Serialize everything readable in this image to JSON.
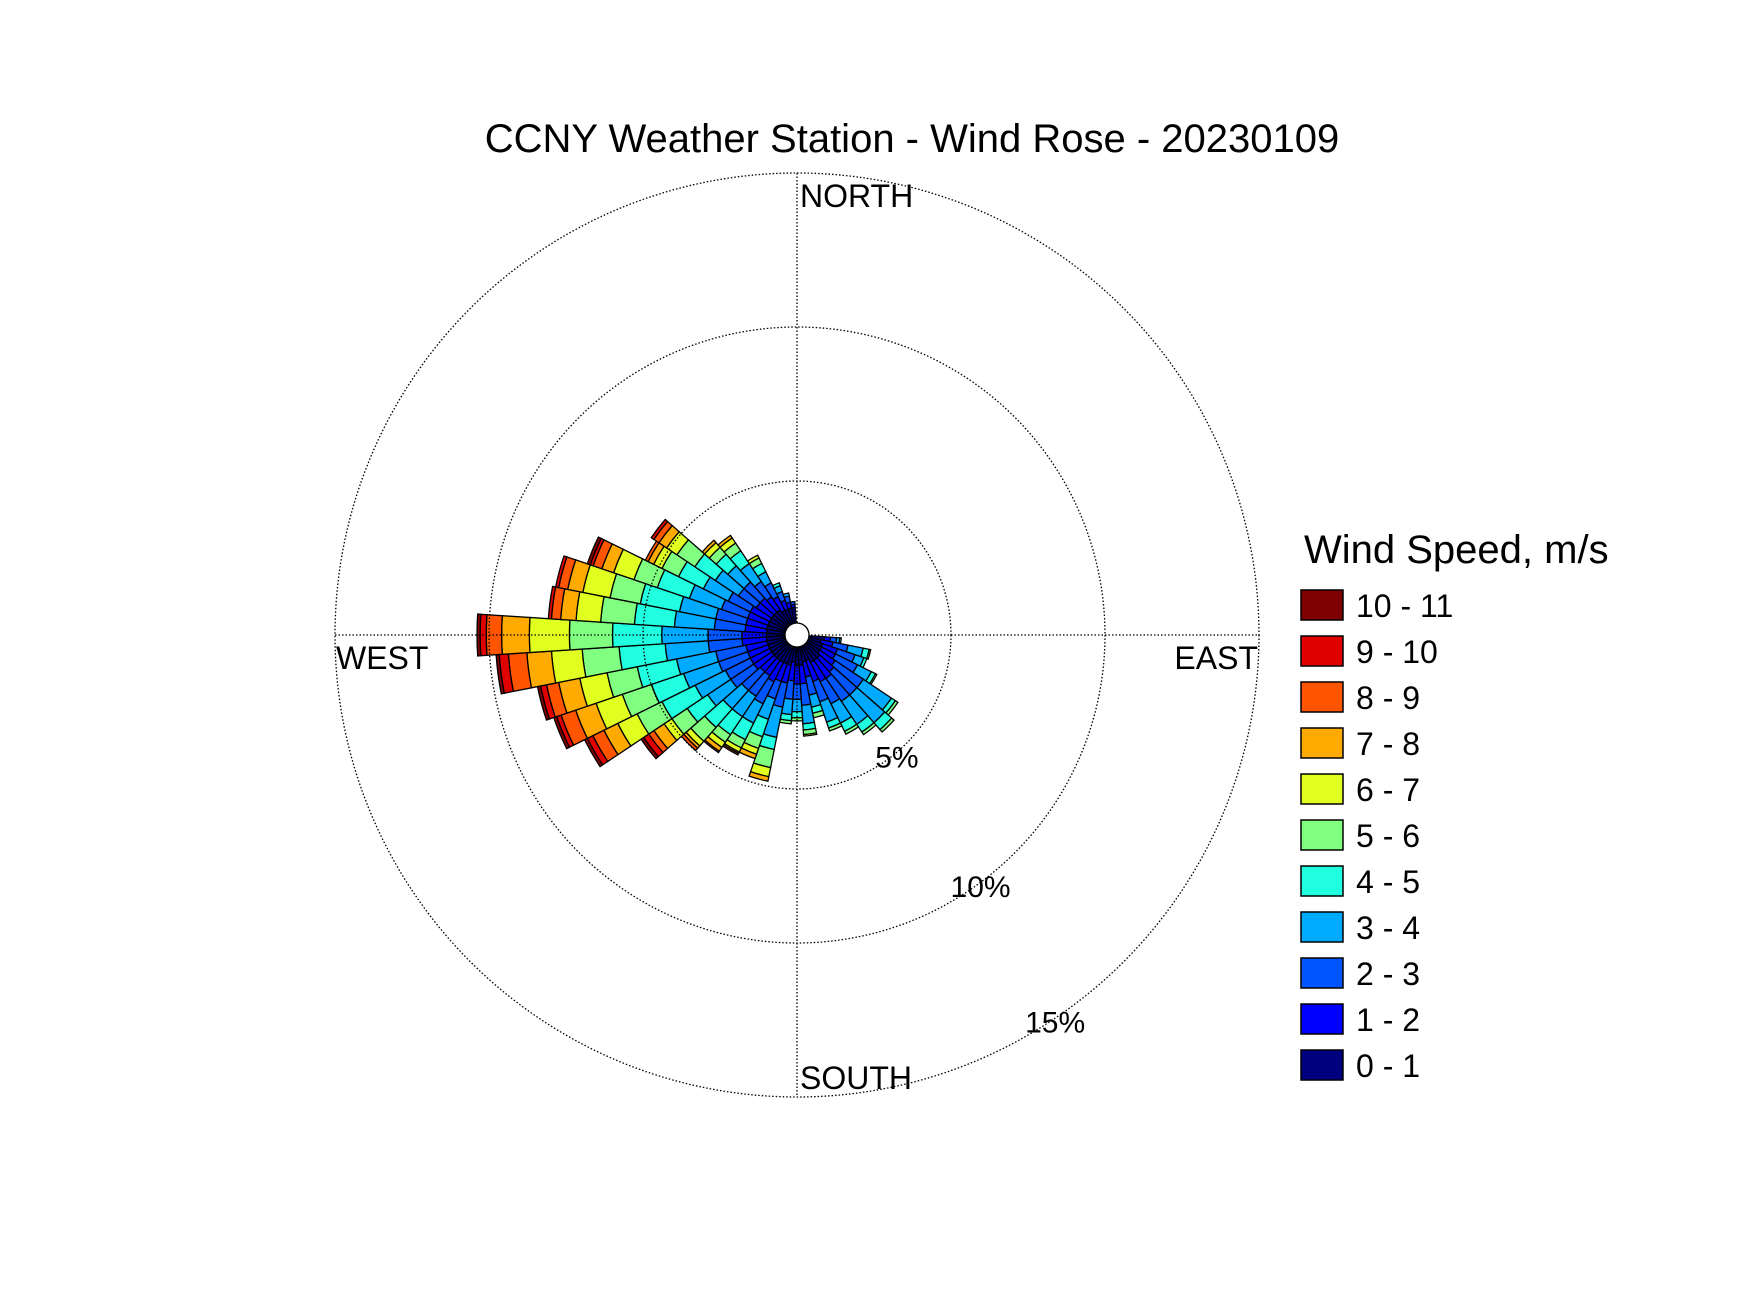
{
  "chart_data": {
    "type": "wind-rose",
    "title": "CCNY Weather Station - Wind Rose - 20230109",
    "cardinals": {
      "north": "NORTH",
      "south": "SOUTH",
      "east": "EAST",
      "west": "WEST"
    },
    "rings": [
      {
        "value": 5,
        "label": "5%"
      },
      {
        "value": 10,
        "label": "10%"
      },
      {
        "value": 15,
        "label": "15%"
      }
    ],
    "rmax": 15,
    "legend": {
      "title": "Wind Speed, m/s",
      "position": "right"
    },
    "speed_bins": [
      {
        "label": "0 - 1",
        "color": "#00007F"
      },
      {
        "label": "1 - 2",
        "color": "#0000FF"
      },
      {
        "label": "2 - 3",
        "color": "#0055FF"
      },
      {
        "label": "3 - 4",
        "color": "#00AAFF"
      },
      {
        "label": "4 - 5",
        "color": "#20FFE0"
      },
      {
        "label": "5 - 6",
        "color": "#80FF80"
      },
      {
        "label": "6 - 7",
        "color": "#E0FF20"
      },
      {
        "label": "7 - 8",
        "color": "#FFAA00"
      },
      {
        "label": "8 - 9",
        "color": "#FF5500"
      },
      {
        "label": "9 - 10",
        "color": "#E00000"
      },
      {
        "label": "10 - 11",
        "color": "#7F0000"
      }
    ],
    "sector_width_deg": 7.5,
    "sectors": [
      {
        "direction": 97.5,
        "cum": [
          0.5,
          0.7,
          0.9,
          1.0,
          1.05
        ]
      },
      {
        "direction": 105,
        "cum": [
          0.4,
          0.8,
          1.3,
          1.8,
          2.0,
          2.05
        ]
      },
      {
        "direction": 112.5,
        "cum": [
          0.5,
          1.0,
          1.6,
          1.9,
          2.0
        ]
      },
      {
        "direction": 120,
        "cum": [
          0.5,
          1.0,
          1.8,
          2.3,
          2.45,
          2.5
        ]
      },
      {
        "direction": 127.5,
        "cum": [
          0.5,
          1.1,
          2.2,
          3.3,
          3.45,
          3.55
        ]
      },
      {
        "direction": 135,
        "cum": [
          0.6,
          1.2,
          2.2,
          3.4,
          3.7,
          3.8
        ]
      },
      {
        "direction": 142.5,
        "cum": [
          0.6,
          1.3,
          2.2,
          3.1,
          3.4,
          3.5
        ]
      },
      {
        "direction": 150,
        "cum": [
          0.6,
          1.3,
          2.1,
          2.8,
          3.1,
          3.2
        ]
      },
      {
        "direction": 157.5,
        "cum": [
          0.5,
          1.2,
          1.9,
          2.6,
          2.8,
          2.9
        ]
      },
      {
        "direction": 165,
        "cum": [
          0.5,
          1.0,
          1.6,
          2.0,
          2.2,
          2.35
        ]
      },
      {
        "direction": 172.5,
        "cum": [
          0.6,
          1.2,
          1.9,
          2.5,
          2.7,
          2.85,
          2.9
        ]
      },
      {
        "direction": 180,
        "cum": [
          0.6,
          1.2,
          1.7,
          2.1,
          2.3,
          2.4
        ]
      },
      {
        "direction": 187.5,
        "cum": [
          0.5,
          1.1,
          1.7,
          2.2,
          2.4,
          2.5
        ]
      },
      {
        "direction": 195,
        "cum": [
          0.6,
          1.2,
          2.0,
          3.0,
          3.4,
          4.0,
          4.3,
          4.45
        ]
      },
      {
        "direction": 202.5,
        "cum": [
          0.6,
          1.2,
          1.8,
          2.5,
          3.1,
          3.5,
          3.7,
          3.85
        ]
      },
      {
        "direction": 210,
        "cum": [
          0.6,
          1.3,
          2.1,
          2.8,
          3.4,
          3.7,
          3.85,
          3.9,
          3.95
        ]
      },
      {
        "direction": 217.5,
        "cum": [
          0.6,
          1.2,
          2.0,
          2.8,
          3.5,
          3.8,
          4.0,
          4.15,
          4.2
        ]
      },
      {
        "direction": 225,
        "cum": [
          0.6,
          1.2,
          2.0,
          2.8,
          3.6,
          4.2,
          4.4,
          4.5,
          4.6
        ]
      },
      {
        "direction": 232.5,
        "cum": [
          0.6,
          1.3,
          2.2,
          3.1,
          3.9,
          4.5,
          4.8,
          5.2,
          5.4,
          5.6,
          5.7
        ]
      },
      {
        "direction": 240,
        "cum": [
          0.6,
          1.3,
          2.2,
          3.3,
          4.5,
          5.4,
          6.1,
          6.6,
          7.0,
          7.2,
          7.3
        ]
      },
      {
        "direction": 247.5,
        "cum": [
          0.6,
          1.3,
          2.3,
          3.5,
          4.6,
          5.6,
          6.5,
          7.2,
          7.7,
          7.85,
          7.95
        ]
      },
      {
        "direction": 255,
        "cum": [
          0.6,
          1.3,
          2.3,
          3.6,
          4.9,
          5.9,
          6.8,
          7.5,
          7.9,
          8.1,
          8.2
        ]
      },
      {
        "direction": 262.5,
        "cum": [
          0.6,
          1.4,
          2.5,
          3.9,
          5.4,
          6.6,
          7.6,
          8.4,
          9.0,
          9.3,
          9.4
        ]
      },
      {
        "direction": 270,
        "cum": [
          0.6,
          1.4,
          2.5,
          4.0,
          5.6,
          7.0,
          8.3,
          9.2,
          9.7,
          9.9,
          10.0
        ]
      },
      {
        "direction": 277.5,
        "cum": [
          0.6,
          1.3,
          2.3,
          3.6,
          4.9,
          6.0,
          6.8,
          7.3,
          7.6,
          7.7
        ]
      },
      {
        "direction": 285,
        "cum": [
          0.6,
          1.3,
          2.3,
          3.5,
          4.8,
          5.8,
          6.7,
          7.2,
          7.5,
          7.6
        ]
      },
      {
        "direction": 292.5,
        "cum": [
          0.6,
          1.3,
          2.2,
          3.3,
          4.4,
          5.2,
          5.9,
          6.3,
          6.6,
          6.7,
          6.8
        ]
      },
      {
        "direction": 300,
        "cum": [
          0.6,
          1.3,
          2.1,
          3.0,
          3.9,
          4.5,
          4.8,
          5.0,
          5.1
        ]
      },
      {
        "direction": 307.5,
        "cum": [
          0.6,
          1.2,
          1.9,
          2.8,
          3.6,
          4.3,
          4.7,
          5.0,
          5.2,
          5.3
        ]
      },
      {
        "direction": 315,
        "cum": [
          0.6,
          1.2,
          1.9,
          2.6,
          3.1,
          3.4,
          3.6,
          3.7
        ]
      },
      {
        "direction": 322.5,
        "cum": [
          0.6,
          1.1,
          1.7,
          2.4,
          2.9,
          3.2,
          3.4,
          3.5
        ]
      },
      {
        "direction": 330,
        "cum": [
          0.5,
          1.0,
          1.5,
          1.9,
          2.2,
          2.4,
          2.5
        ]
      },
      {
        "direction": 337.5,
        "cum": [
          0.5,
          0.8,
          1.1,
          1.3,
          1.4
        ]
      },
      {
        "direction": 345,
        "cum": [
          0.5,
          0.7,
          0.9,
          1.0
        ]
      },
      {
        "direction": 352.5,
        "cum": [
          0.5,
          0.6,
          0.7
        ]
      }
    ]
  }
}
